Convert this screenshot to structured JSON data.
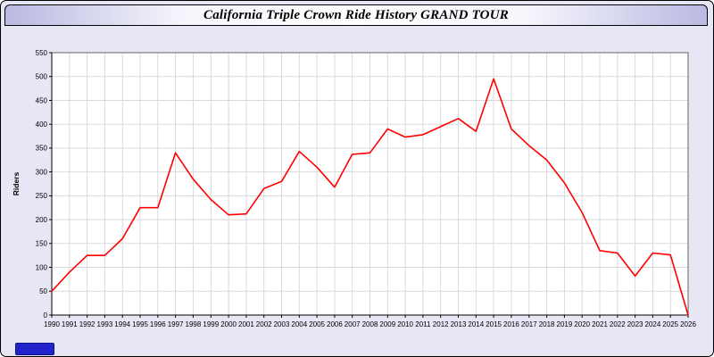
{
  "window": {
    "title": "California Triple Crown Ride History GRAND TOUR"
  },
  "colors": {
    "window_background": "#e6e6f5",
    "plot_background": "#ffffff",
    "grid_color": "#d9d9d9",
    "line_color": "#ff0000",
    "blue_button": "#2323cc"
  },
  "chart_data": {
    "type": "line",
    "title": "California Triple Crown Ride History GRAND TOUR",
    "xlabel": "",
    "ylabel": "Riders",
    "ylim": [
      0,
      550
    ],
    "yticks": [
      0,
      50,
      100,
      150,
      200,
      250,
      300,
      350,
      400,
      450,
      500,
      550
    ],
    "grid": true,
    "legend": "none",
    "line_color": "#ff0000",
    "categories": [
      "1990",
      "1991",
      "1992",
      "1993",
      "1994",
      "1995",
      "1996",
      "1997",
      "1998",
      "1999",
      "2000",
      "2001",
      "2002",
      "2003",
      "2004",
      "2005",
      "2006",
      "2007",
      "2008",
      "2009",
      "2010",
      "2011",
      "2012",
      "2013",
      "2014",
      "2015",
      "2016",
      "2017",
      "2018",
      "2019",
      "2020",
      "2021",
      "2022",
      "2023",
      "2024",
      "2025",
      "2026"
    ],
    "values": [
      50,
      90,
      125,
      125,
      160,
      225,
      225,
      340,
      285,
      242,
      210,
      212,
      265,
      280,
      343,
      310,
      268,
      337,
      340,
      390,
      373,
      378,
      395,
      412,
      385,
      495,
      390,
      355,
      325,
      277,
      215,
      135,
      130,
      82,
      130,
      126,
      0
    ]
  }
}
